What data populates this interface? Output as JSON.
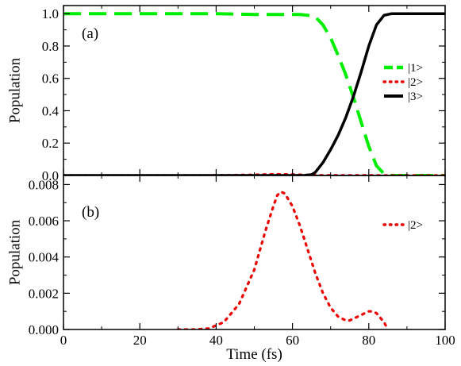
{
  "chart_data": [
    {
      "type": "line",
      "panel_label": "(a)",
      "title": "",
      "xlabel": "Time (fs)",
      "ylabel": "Population",
      "xlim": [
        0,
        100
      ],
      "ylim": [
        0,
        1.05
      ],
      "xticks": [
        0,
        20,
        40,
        60,
        80,
        100
      ],
      "yticks": [
        0.0,
        0.2,
        0.4,
        0.6,
        0.8,
        1.0
      ],
      "ytick_labels": [
        "0.0",
        "0.2",
        "0.4",
        "0.6",
        "0.8",
        "1.0"
      ],
      "show_x_tick_labels": false,
      "legend_position": "right",
      "series": [
        {
          "name": "|1>",
          "color": "#00ee00",
          "style": "dashed",
          "x": [
            0,
            10,
            20,
            30,
            40,
            50,
            60,
            62,
            64,
            66,
            68,
            70,
            72,
            74,
            76,
            78,
            80,
            82,
            84,
            86,
            90,
            100
          ],
          "y": [
            1.0,
            1.0,
            1.0,
            1.0,
            1.0,
            0.995,
            0.995,
            0.995,
            0.99,
            0.98,
            0.93,
            0.85,
            0.74,
            0.62,
            0.48,
            0.33,
            0.18,
            0.06,
            0.01,
            0.0,
            0.0,
            0.0
          ]
        },
        {
          "name": "|2>",
          "color": "#ee0000",
          "style": "dotted",
          "x": [
            0,
            30,
            40,
            50,
            55,
            58,
            62,
            66,
            70,
            75,
            80,
            83,
            85,
            100
          ],
          "y": [
            0,
            0,
            0.0005,
            0.004,
            0.0075,
            0.007,
            0.0045,
            0.0015,
            0.0005,
            0.0006,
            0.001,
            0.0004,
            0,
            0
          ]
        },
        {
          "name": "|3>",
          "color": "#000000",
          "style": "solid",
          "x": [
            0,
            50,
            60,
            63,
            65,
            66,
            68,
            70,
            72,
            74,
            76,
            78,
            80,
            82,
            84,
            86,
            90,
            100
          ],
          "y": [
            0,
            0,
            0,
            0,
            0.005,
            0.02,
            0.08,
            0.16,
            0.25,
            0.36,
            0.49,
            0.64,
            0.8,
            0.93,
            0.99,
            1.0,
            1.0,
            1.0
          ]
        }
      ]
    },
    {
      "type": "line",
      "panel_label": "(b)",
      "title": "",
      "xlabel": "Time (fs)",
      "ylabel": "Population",
      "xlim": [
        0,
        100
      ],
      "ylim": [
        0,
        0.0085
      ],
      "xticks": [
        0,
        20,
        40,
        60,
        80,
        100
      ],
      "xtick_labels": [
        "0",
        "20",
        "40",
        "60",
        "80",
        "100"
      ],
      "yticks": [
        0.0,
        0.002,
        0.004,
        0.006,
        0.008
      ],
      "ytick_labels": [
        "0.000",
        "0.002",
        "0.004",
        "0.006",
        "0.008"
      ],
      "show_x_tick_labels": true,
      "legend_position": "top-right",
      "series": [
        {
          "name": "|2>",
          "color": "#ee0000",
          "style": "dotted",
          "x": [
            30,
            34,
            38,
            42,
            46,
            50,
            53,
            55,
            56,
            57,
            58,
            60,
            62,
            64,
            66,
            68,
            70,
            72,
            74,
            75,
            76,
            78,
            80,
            81,
            82,
            84,
            85
          ],
          "y": [
            0.0,
            0.0,
            5e-05,
            0.0004,
            0.0014,
            0.0033,
            0.0055,
            0.0068,
            0.0074,
            0.0076,
            0.0075,
            0.0068,
            0.0057,
            0.0044,
            0.0031,
            0.002,
            0.0012,
            0.0007,
            0.0005,
            0.0005,
            0.0006,
            0.0008,
            0.001,
            0.001,
            0.0009,
            0.0004,
            0.0
          ]
        }
      ]
    }
  ]
}
